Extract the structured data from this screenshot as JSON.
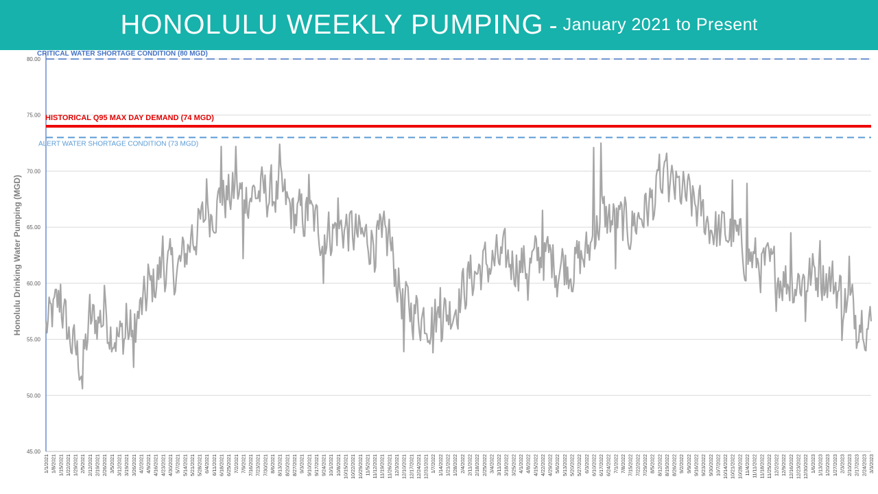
{
  "header": {
    "title": "HONOLULU WEEKLY PUMPING",
    "separator": "-",
    "subtitle": "January 2021 to Present"
  },
  "colors": {
    "banner": "#16b2ab",
    "series": "#a6a6a6",
    "critical_line": "#4472c4",
    "q95_line": "#ee0000",
    "alert_line": "#5b9bd5"
  },
  "chart_data": {
    "type": "line",
    "ylabel": "Honolulu Drinking Water Pumping (MGD)",
    "ylim": [
      45,
      80
    ],
    "yticks": [
      "45.00",
      "50.00",
      "55.00",
      "60.00",
      "65.00",
      "70.00",
      "75.00",
      "80.00"
    ],
    "x_start_date": "1/1/2021",
    "x_end_date": "3/3/2023",
    "xtick_step_days": 7,
    "reference_lines": [
      {
        "name": "critical",
        "label": "CRITICAL WATER SHORTAGE CONDITION (80 MGD)",
        "value": 80,
        "style": "dashed"
      },
      {
        "name": "q95",
        "label": "HISTORICAL Q95 MAX DAY DEMAND (74 MGD)",
        "value": 74,
        "style": "solid"
      },
      {
        "name": "alert",
        "label": "ALERT WATER SHORTAGE CONDITION (73 MGD)",
        "value": 73,
        "style": "dashed"
      }
    ],
    "series": [
      {
        "anchors": [
          [
            "2021-01-01",
            56.0
          ],
          [
            "2021-01-15",
            58.5
          ],
          [
            "2021-01-22",
            55.5
          ],
          [
            "2021-02-05",
            52.5
          ],
          [
            "2021-02-12",
            56.5
          ],
          [
            "2021-02-26",
            57.0
          ],
          [
            "2021-03-12",
            55.0
          ],
          [
            "2021-03-26",
            56.0
          ],
          [
            "2021-04-09",
            59.0
          ],
          [
            "2021-04-23",
            61.5
          ],
          [
            "2021-05-07",
            61.0
          ],
          [
            "2021-05-21",
            64.0
          ],
          [
            "2021-06-04",
            66.0
          ],
          [
            "2021-06-18",
            67.5
          ],
          [
            "2021-07-02",
            68.0
          ],
          [
            "2021-07-16",
            68.0
          ],
          [
            "2021-07-30",
            68.0
          ],
          [
            "2021-08-13",
            68.0
          ],
          [
            "2021-08-27",
            66.0
          ],
          [
            "2021-09-10",
            66.0
          ],
          [
            "2021-09-24",
            64.5
          ],
          [
            "2021-10-15",
            65.0
          ],
          [
            "2021-10-29",
            64.0
          ],
          [
            "2021-11-12",
            64.0
          ],
          [
            "2021-11-26",
            63.5
          ],
          [
            "2021-12-10",
            58.0
          ],
          [
            "2021-12-31",
            57.0
          ],
          [
            "2022-01-14",
            57.0
          ],
          [
            "2022-01-28",
            58.0
          ],
          [
            "2022-02-11",
            60.5
          ],
          [
            "2022-02-25",
            61.5
          ],
          [
            "2022-03-11",
            62.0
          ],
          [
            "2022-03-25",
            62.0
          ],
          [
            "2022-04-08",
            61.5
          ],
          [
            "2022-04-22",
            62.5
          ],
          [
            "2022-05-06",
            62.0
          ],
          [
            "2022-05-20",
            61.5
          ],
          [
            "2022-06-03",
            62.5
          ],
          [
            "2022-06-17",
            66.0
          ],
          [
            "2022-07-01",
            65.5
          ],
          [
            "2022-07-15",
            65.0
          ],
          [
            "2022-07-29",
            66.5
          ],
          [
            "2022-08-12",
            68.0
          ],
          [
            "2022-08-26",
            68.5
          ],
          [
            "2022-09-09",
            67.5
          ],
          [
            "2022-09-23",
            66.0
          ],
          [
            "2022-10-07",
            64.5
          ],
          [
            "2022-10-21",
            64.5
          ],
          [
            "2022-11-04",
            62.5
          ],
          [
            "2022-11-18",
            61.5
          ],
          [
            "2022-12-02",
            61.0
          ],
          [
            "2022-12-16",
            60.0
          ],
          [
            "2022-12-30",
            60.5
          ],
          [
            "2023-01-13",
            61.0
          ],
          [
            "2023-01-27",
            60.0
          ],
          [
            "2023-02-10",
            58.0
          ],
          [
            "2023-02-24",
            57.0
          ],
          [
            "2023-03-03",
            56.0
          ]
        ],
        "spikes": [
          [
            "2021-01-15",
            59.9
          ],
          [
            "2021-02-05",
            50.6
          ],
          [
            "2021-02-12",
            59.0
          ],
          [
            "2021-02-26",
            59.8
          ],
          [
            "2021-03-19",
            58.2
          ],
          [
            "2021-03-26",
            52.5
          ],
          [
            "2021-04-09",
            61.7
          ],
          [
            "2021-04-23",
            64.2
          ],
          [
            "2021-05-21",
            65.2
          ],
          [
            "2021-06-04",
            69.3
          ],
          [
            "2021-06-18",
            72.2
          ],
          [
            "2021-07-02",
            72.2
          ],
          [
            "2021-07-09",
            62.2
          ],
          [
            "2021-08-13",
            72.4
          ],
          [
            "2021-09-10",
            69.7
          ],
          [
            "2021-09-24",
            60.0
          ],
          [
            "2021-10-08",
            67.6
          ],
          [
            "2021-11-12",
            61.0
          ],
          [
            "2021-11-19",
            64.1
          ],
          [
            "2021-11-26",
            65.7
          ],
          [
            "2021-12-10",
            53.9
          ],
          [
            "2022-01-07",
            53.8
          ],
          [
            "2022-01-14",
            59.6
          ],
          [
            "2022-04-08",
            58.5
          ],
          [
            "2022-04-22",
            66.5
          ],
          [
            "2022-05-06",
            58.8
          ],
          [
            "2022-06-10",
            72.1
          ],
          [
            "2022-06-17",
            72.5
          ],
          [
            "2022-07-01",
            61.3
          ],
          [
            "2022-08-12",
            71.5
          ],
          [
            "2022-08-19",
            71.6
          ],
          [
            "2022-10-21",
            69.2
          ],
          [
            "2022-11-04",
            68.9
          ],
          [
            "2022-12-02",
            57.5
          ],
          [
            "2022-12-16",
            64.5
          ],
          [
            "2022-12-30",
            56.6
          ],
          [
            "2023-01-13",
            63.8
          ],
          [
            "2023-02-03",
            54.9
          ],
          [
            "2023-02-10",
            62.4
          ],
          [
            "2023-02-17",
            54.2
          ],
          [
            "2023-02-24",
            54.7
          ]
        ]
      }
    ]
  }
}
